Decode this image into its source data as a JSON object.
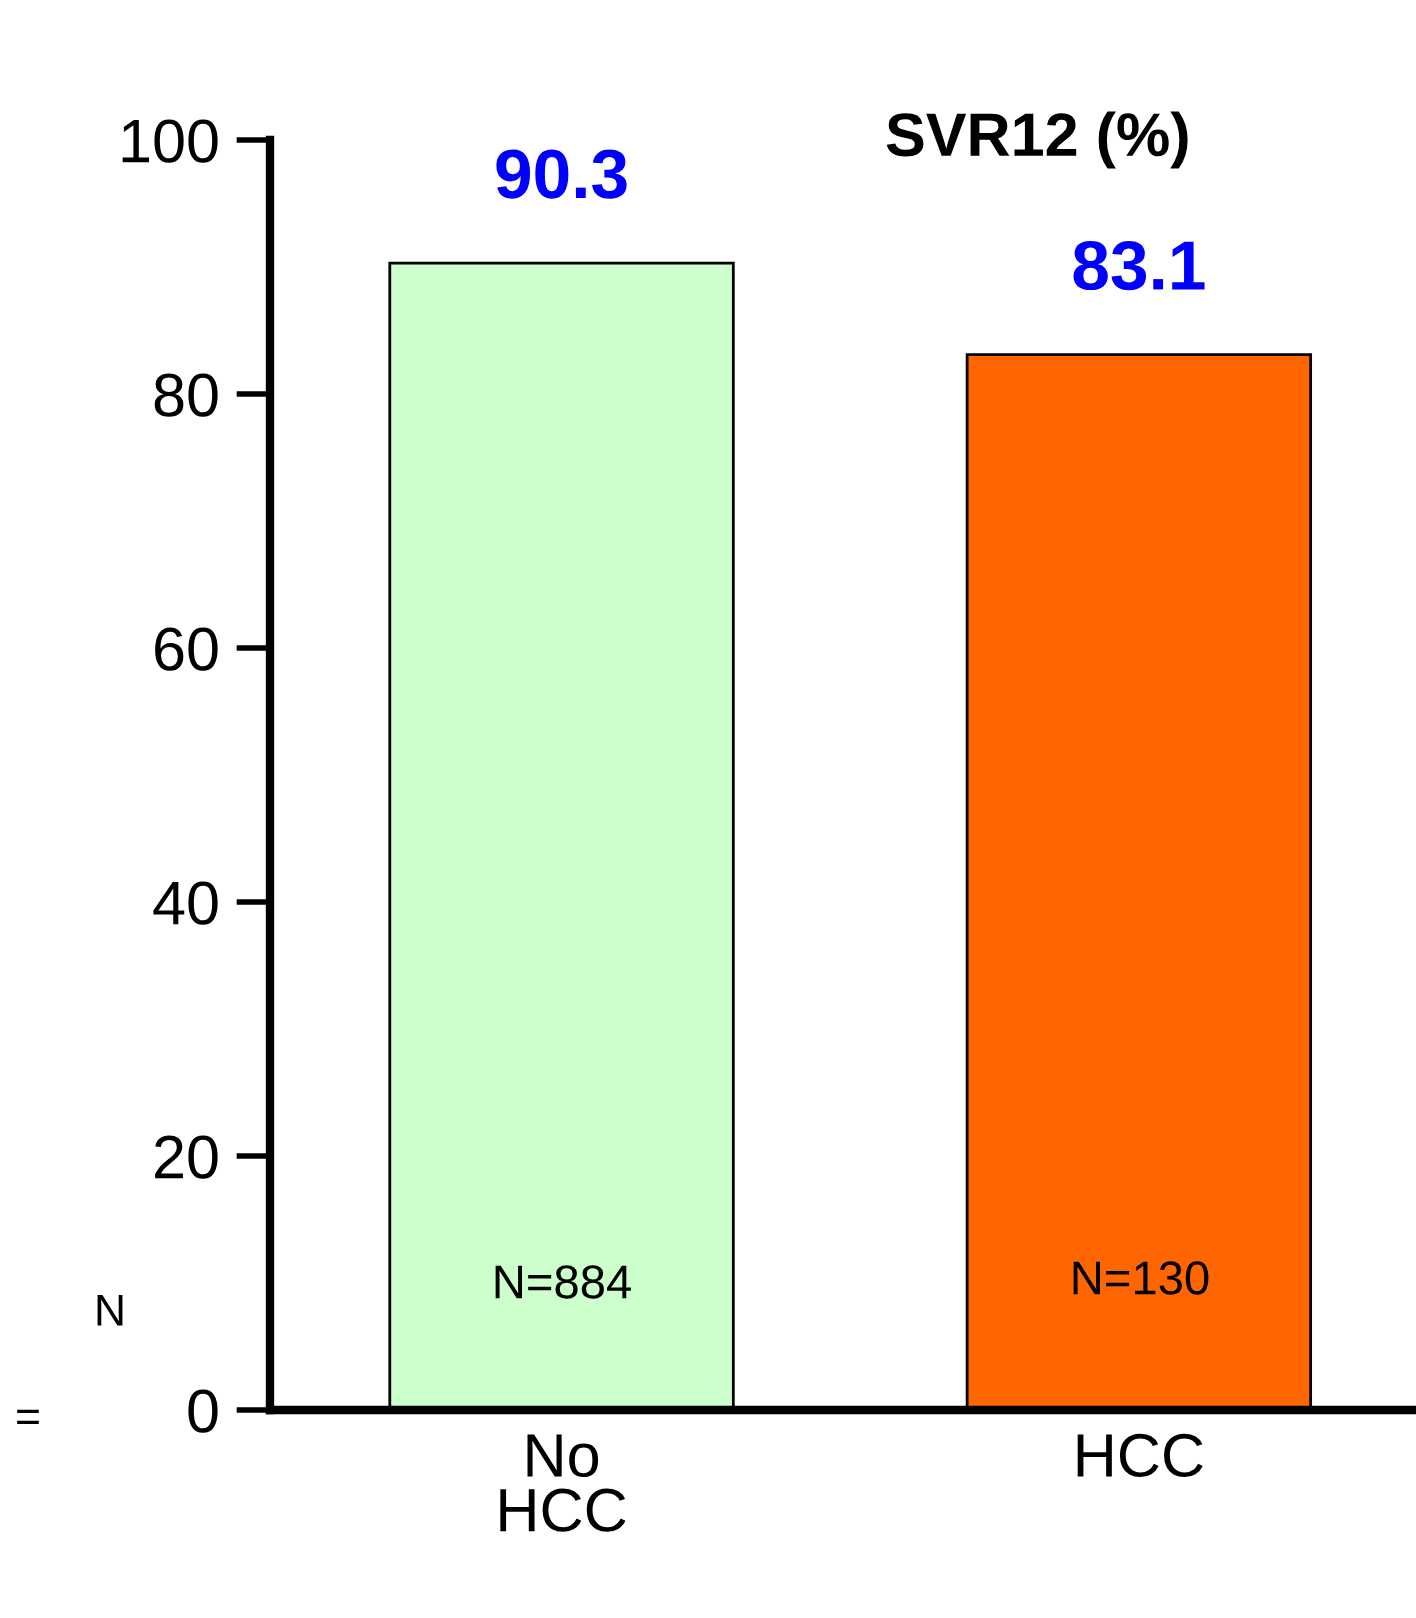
{
  "chart_data": {
    "type": "bar",
    "title": "SVR12 (%)",
    "categories": [
      "No\nHCC",
      "HCC"
    ],
    "values": [
      90.3,
      83.1
    ],
    "colors": [
      "#ccffcc",
      "#ff6600"
    ],
    "ylim": [
      0,
      100
    ],
    "yticks": [
      0,
      20,
      40,
      60,
      80,
      100
    ],
    "grid": false,
    "data_labels": true,
    "annotations": [
      "N=884",
      "N=130",
      "N",
      "="
    ]
  }
}
